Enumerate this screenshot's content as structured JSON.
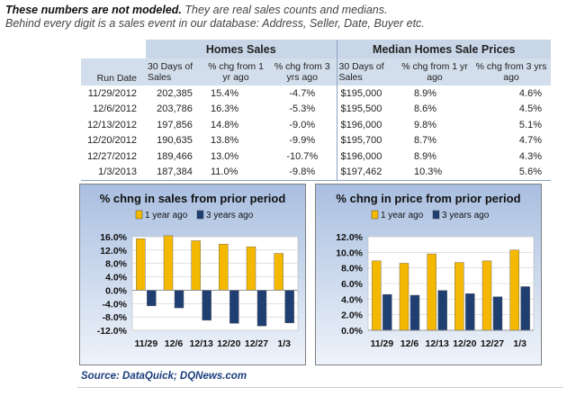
{
  "intro": {
    "bold": "These numbers are not modeled.",
    "line1_rest": " They are real sales counts and medians.",
    "line2": "Behind every digit is a sales event in our database: Address, Seller, Date, Buyer etc."
  },
  "table": {
    "group_headers": [
      "Homes Sales",
      "Median Homes Sale Prices"
    ],
    "columns": [
      "Run Date",
      "30 Days of Sales",
      "% chg from 1 yr ago",
      "% chg from 3 yrs ago",
      "30 Days of Sales",
      "% chg from 1 yr ago",
      "% chg from 3 yrs ago"
    ],
    "rows": [
      [
        "11/29/2012",
        "202,385",
        "15.4%",
        "-4.7%",
        "$195,000",
        "8.9%",
        "4.6%"
      ],
      [
        "12/6/2012",
        "203,786",
        "16.3%",
        "-5.3%",
        "$195,500",
        "8.6%",
        "4.5%"
      ],
      [
        "12/13/2012",
        "197,856",
        "14.8%",
        "-9.0%",
        "$196,000",
        "9.8%",
        "5.1%"
      ],
      [
        "12/20/2012",
        "190,635",
        "13.8%",
        "-9.9%",
        "$195,700",
        "8.7%",
        "4.7%"
      ],
      [
        "12/27/2012",
        "189,466",
        "13.0%",
        "-10.7%",
        "$196,000",
        "8.9%",
        "4.3%"
      ],
      [
        "1/3/2013",
        "187,384",
        "11.0%",
        "-9.8%",
        "$197,462",
        "10.3%",
        "5.6%"
      ]
    ]
  },
  "chart_data": [
    {
      "type": "bar",
      "title": "% chng in sales from prior period",
      "categories": [
        "11/29",
        "12/6",
        "12/13",
        "12/20",
        "12/27",
        "1/3"
      ],
      "series": [
        {
          "name": "1 year ago",
          "values": [
            15.4,
            16.3,
            14.8,
            13.8,
            13.0,
            11.0
          ],
          "color": "#f5b800"
        },
        {
          "name": "3 years ago",
          "values": [
            -4.7,
            -5.3,
            -9.0,
            -9.9,
            -10.7,
            -9.8
          ],
          "color": "#1f3f73"
        }
      ],
      "ylim": [
        -12,
        16
      ],
      "yticks": [
        16,
        12,
        8,
        4,
        0,
        -4,
        -8,
        -12
      ],
      "ytick_labels": [
        "16.0%",
        "12.0%",
        "8.0%",
        "4.0%",
        "0.0%",
        "-4.0%",
        "-8.0%",
        "-12.0%"
      ],
      "legend": "top",
      "background": "gradient-blue"
    },
    {
      "type": "bar",
      "title": "% chng in price from prior period",
      "categories": [
        "11/29",
        "12/6",
        "12/13",
        "12/20",
        "12/27",
        "1/3"
      ],
      "series": [
        {
          "name": "1 year ago",
          "values": [
            8.9,
            8.6,
            9.8,
            8.7,
            8.9,
            10.3
          ],
          "color": "#f5b800"
        },
        {
          "name": "3 years ago",
          "values": [
            4.6,
            4.5,
            5.1,
            4.7,
            4.3,
            5.6
          ],
          "color": "#1f3f73"
        }
      ],
      "ylim": [
        0,
        12
      ],
      "yticks": [
        12,
        10,
        8,
        6,
        4,
        2,
        0
      ],
      "ytick_labels": [
        "12.0%",
        "10.0%",
        "8.0%",
        "6.0%",
        "4.0%",
        "2.0%",
        "0.0%"
      ],
      "legend": "top",
      "background": "gradient-blue"
    }
  ],
  "source": "Source: DataQuick; DQNews.com"
}
